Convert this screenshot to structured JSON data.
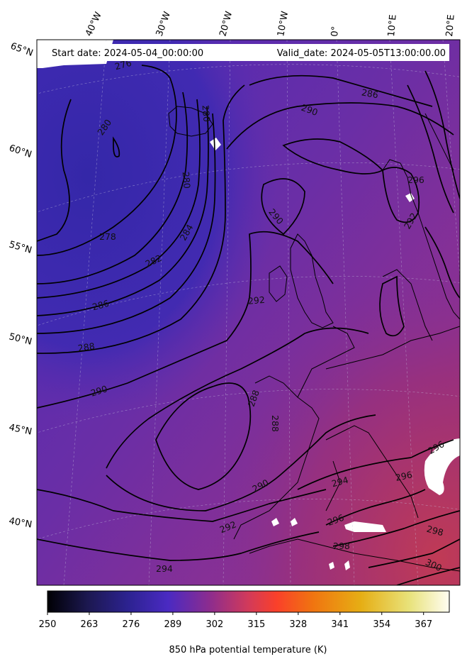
{
  "header": {
    "start_date": "Start date: 2024-05-04_00:00:00",
    "valid_date": "Valid_date: 2024-05-05T13:00:00.00"
  },
  "longitude_labels": [
    "40°W",
    "30°W",
    "20°W",
    "10°W",
    "0°",
    "10°E",
    "20°E"
  ],
  "latitude_labels": [
    "65°N",
    "60°N",
    "55°N",
    "50°N",
    "45°N",
    "40°N"
  ],
  "contour_labels": [
    "278",
    "280",
    "280",
    "282",
    "284",
    "286",
    "286",
    "288",
    "288",
    "288",
    "290",
    "290",
    "290",
    "290",
    "292",
    "292",
    "294",
    "294",
    "296",
    "296",
    "296",
    "298",
    "298",
    "300",
    "280",
    "292",
    "296",
    "276"
  ],
  "colorbar": {
    "label": "850 hPa potential temperature (K)",
    "min": 250,
    "max": 375,
    "ticks": [
      "250",
      "263",
      "276",
      "289",
      "302",
      "315",
      "328",
      "341",
      "354",
      "367"
    ],
    "colormap_stops": [
      "#000004",
      "#2c1e6e",
      "#4b27c0",
      "#8a2c8c",
      "#d43a55",
      "#fa3f2a",
      "#f08010",
      "#e8b010",
      "#e8e070",
      "#fffdf0"
    ]
  },
  "colors": {
    "cold_field": "#3a2aa8",
    "mid_field": "#6a2ea8",
    "warm_field": "#b5355e",
    "contour": "#000000"
  }
}
